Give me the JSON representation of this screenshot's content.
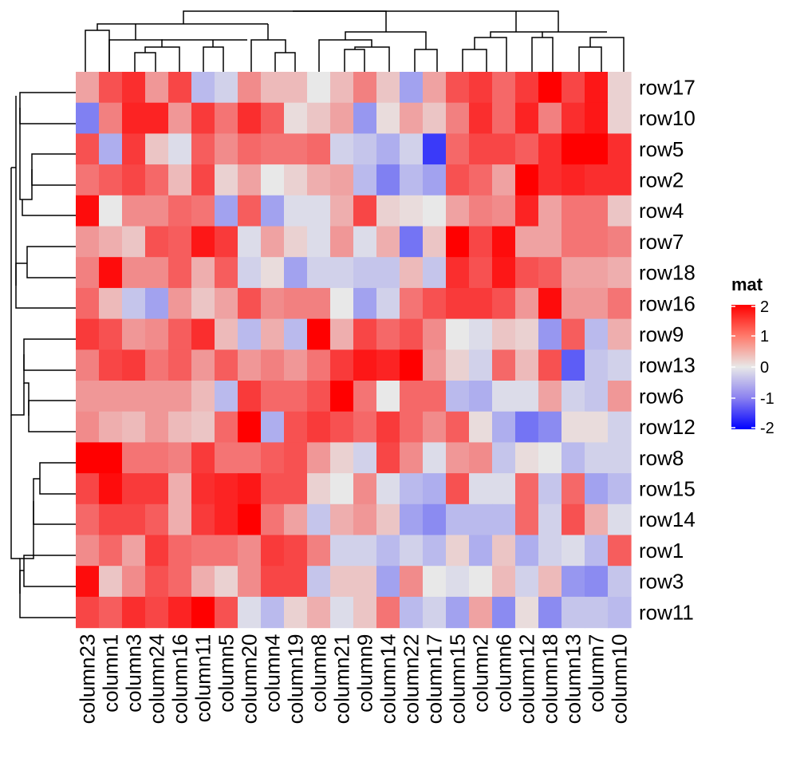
{
  "chart_data": {
    "type": "heatmap",
    "rows": [
      "row17",
      "row10",
      "row5",
      "row2",
      "row4",
      "row7",
      "row18",
      "row16",
      "row9",
      "row13",
      "row6",
      "row12",
      "row8",
      "row15",
      "row14",
      "row1",
      "row3",
      "row11"
    ],
    "columns": [
      "column23",
      "column1",
      "column3",
      "column24",
      "column16",
      "column11",
      "column5",
      "column20",
      "column4",
      "column19",
      "column8",
      "column21",
      "column9",
      "column14",
      "column22",
      "column17",
      "column15",
      "column2",
      "column6",
      "column12",
      "column18",
      "column13",
      "column7",
      "column10"
    ],
    "values": [
      [
        0.6,
        1.3,
        1.6,
        0.7,
        1.4,
        -0.4,
        -0.2,
        0.8,
        0.4,
        0.4,
        0.0,
        0.4,
        0.9,
        0.3,
        -0.6,
        0.6,
        1.3,
        1.5,
        1.1,
        1.5,
        2.2,
        1.4,
        1.8,
        0.2
      ],
      [
        -0.9,
        0.9,
        1.7,
        1.7,
        0.7,
        1.5,
        1.0,
        1.6,
        1.2,
        0.1,
        0.3,
        0.6,
        -0.7,
        0.1,
        0.6,
        0.3,
        0.9,
        1.6,
        1.1,
        1.7,
        0.9,
        1.6,
        1.8,
        0.2
      ],
      [
        1.3,
        -0.5,
        1.5,
        0.3,
        -0.1,
        1.2,
        0.8,
        1.1,
        1.0,
        1.0,
        1.1,
        -0.2,
        -0.3,
        -0.5,
        -0.2,
        -1.5,
        1.1,
        1.4,
        1.4,
        1.2,
        1.6,
        2.2,
        2.2,
        1.6
      ],
      [
        1.0,
        1.2,
        1.4,
        1.1,
        0.4,
        1.4,
        0.2,
        0.6,
        0.0,
        0.2,
        0.5,
        0.6,
        -0.4,
        -0.9,
        -0.4,
        -0.6,
        1.3,
        1.1,
        0.6,
        2.2,
        1.6,
        1.7,
        1.6,
        1.6
      ],
      [
        1.9,
        0.0,
        0.8,
        0.8,
        1.1,
        1.0,
        -0.6,
        1.2,
        -0.6,
        -0.1,
        -0.1,
        0.5,
        1.4,
        0.2,
        0.1,
        0.0,
        0.6,
        0.9,
        0.8,
        1.7,
        0.6,
        1.0,
        1.0,
        0.3
      ],
      [
        0.7,
        0.5,
        0.3,
        1.3,
        1.2,
        1.8,
        1.5,
        -0.1,
        0.6,
        0.2,
        -0.1,
        0.7,
        -0.1,
        0.5,
        -1.0,
        0.3,
        2.2,
        1.4,
        1.9,
        0.6,
        0.6,
        1.0,
        1.0,
        0.9
      ],
      [
        0.9,
        1.9,
        0.8,
        0.8,
        1.2,
        0.5,
        1.2,
        -0.2,
        0.1,
        -0.6,
        -0.2,
        -0.2,
        -0.3,
        -0.3,
        0.4,
        -0.3,
        1.6,
        1.3,
        1.8,
        1.3,
        1.2,
        0.6,
        0.6,
        0.5
      ],
      [
        1.1,
        0.4,
        -0.3,
        -0.6,
        0.7,
        0.3,
        0.6,
        1.3,
        0.8,
        0.9,
        0.9,
        0.0,
        -0.6,
        -0.2,
        1.0,
        1.3,
        1.5,
        1.5,
        1.3,
        0.7,
        1.9,
        0.7,
        0.7,
        1.0
      ],
      [
        1.5,
        1.3,
        0.7,
        0.8,
        1.2,
        1.6,
        0.4,
        -0.4,
        0.5,
        -0.4,
        2.2,
        0.5,
        1.4,
        1.1,
        1.3,
        0.8,
        0.0,
        -0.1,
        0.3,
        0.2,
        -0.7,
        1.2,
        -0.4,
        0.5
      ],
      [
        0.9,
        1.4,
        1.5,
        1.0,
        1.2,
        0.7,
        1.2,
        0.7,
        0.9,
        0.7,
        1.0,
        1.5,
        1.8,
        1.7,
        2.1,
        0.7,
        0.2,
        -0.2,
        1.1,
        0.4,
        1.3,
        -1.2,
        -0.3,
        -0.2
      ],
      [
        0.7,
        0.7,
        0.7,
        0.7,
        0.7,
        0.4,
        -0.4,
        1.5,
        1.1,
        1.1,
        1.3,
        2.1,
        1.0,
        0.0,
        1.1,
        1.1,
        -0.4,
        -0.5,
        -0.1,
        -0.1,
        0.6,
        -0.2,
        -0.3,
        0.7
      ],
      [
        0.8,
        0.5,
        0.4,
        0.7,
        0.4,
        0.3,
        1.1,
        2.0,
        -0.5,
        1.3,
        1.5,
        1.3,
        1.1,
        1.5,
        1.1,
        0.8,
        1.2,
        0.1,
        -0.5,
        -1.0,
        -0.8,
        0.1,
        0.1,
        -0.2
      ],
      [
        2.0,
        2.2,
        1.0,
        1.0,
        0.9,
        1.5,
        1.0,
        1.0,
        1.2,
        1.3,
        0.7,
        0.2,
        -0.2,
        1.4,
        0.8,
        -0.1,
        0.7,
        0.8,
        -0.3,
        0.1,
        0.0,
        -0.4,
        -0.2,
        -0.2
      ],
      [
        1.4,
        1.9,
        1.5,
        1.5,
        0.5,
        1.6,
        1.7,
        1.8,
        1.3,
        1.3,
        0.2,
        0.0,
        0.8,
        -0.1,
        -0.4,
        -0.5,
        1.3,
        -0.1,
        -0.1,
        1.1,
        -0.3,
        1.1,
        -0.6,
        -0.4
      ],
      [
        1.1,
        1.4,
        1.4,
        1.2,
        0.5,
        1.5,
        1.7,
        2.0,
        1.0,
        0.6,
        -0.3,
        0.5,
        0.7,
        0.3,
        -0.6,
        -0.8,
        -0.4,
        -0.4,
        -0.4,
        1.1,
        -0.2,
        1.3,
        0.5,
        -0.1
      ],
      [
        0.8,
        1.1,
        0.6,
        1.5,
        1.1,
        1.0,
        1.0,
        0.8,
        1.5,
        1.4,
        0.9,
        -0.2,
        -0.2,
        -0.4,
        -0.2,
        -0.4,
        0.2,
        -0.5,
        0.3,
        -0.5,
        -0.2,
        -0.1,
        -0.4,
        1.2
      ],
      [
        1.9,
        0.3,
        0.8,
        1.3,
        1.1,
        0.5,
        0.2,
        0.8,
        1.4,
        1.4,
        -0.3,
        0.3,
        0.3,
        -0.6,
        0.8,
        0.0,
        -0.1,
        0.0,
        0.4,
        -0.2,
        0.4,
        -0.7,
        -0.8,
        -0.3
      ],
      [
        1.4,
        1.2,
        1.6,
        1.4,
        1.7,
        2.0,
        1.3,
        -0.1,
        -0.4,
        0.2,
        0.5,
        -0.1,
        0.3,
        1.0,
        -0.4,
        -0.2,
        -0.6,
        0.6,
        -0.8,
        0.1,
        -0.8,
        -0.3,
        -0.3,
        -0.4
      ]
    ],
    "legend": {
      "title": "mat",
      "ticks": [
        "2",
        "1",
        "0",
        "-1",
        "-2"
      ],
      "tick_values": [
        2,
        1,
        0,
        -1,
        -2
      ],
      "range": [
        -2,
        2
      ],
      "placement": "right"
    },
    "colors": {
      "low": "#0000ff",
      "mid": "#e8e8e8",
      "high": "#ff0000"
    },
    "row_dendrogram": true,
    "column_dendrogram": true
  }
}
